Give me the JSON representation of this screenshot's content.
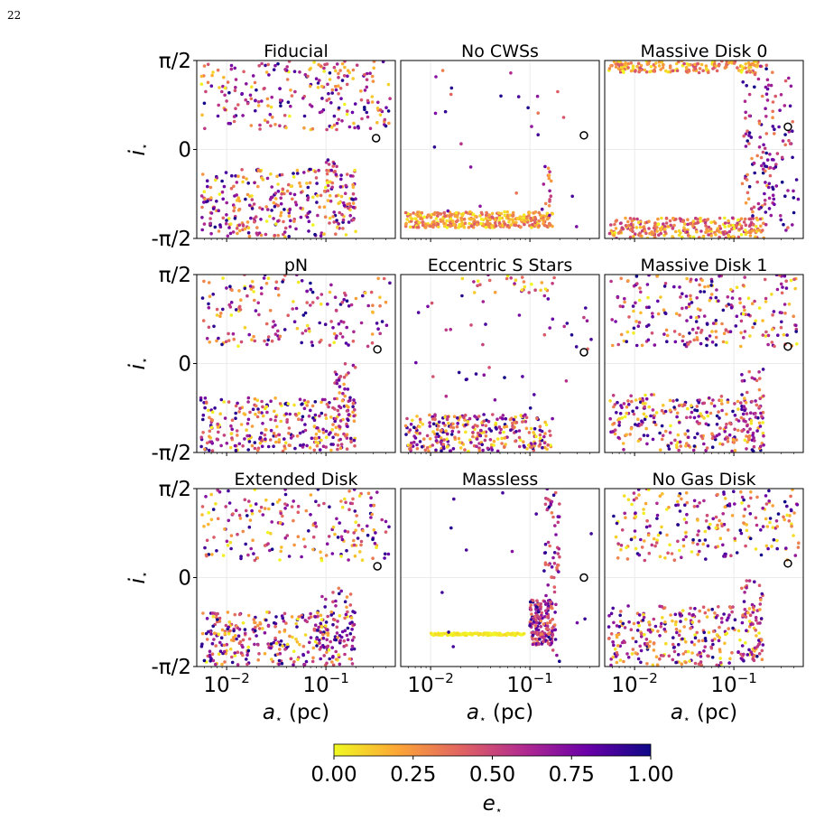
{
  "page_number": "22",
  "chart_data": {
    "type": "scatter",
    "grid": true,
    "legend": "none",
    "x_scale": "log",
    "xlim": [
      0.005,
      0.5
    ],
    "ylim": [
      -1.5708,
      1.5708
    ],
    "x_tick_values": [
      0.01,
      0.1
    ],
    "x_tick_labels": [
      {
        "base": "10",
        "exp": "−2"
      },
      {
        "base": "10",
        "exp": "−1"
      }
    ],
    "y_tick_values": [
      1.5708,
      0,
      -1.5708
    ],
    "y_tick_labels": [
      "π/2",
      "0",
      "-π/2"
    ],
    "xlabel": {
      "main": "a",
      "sub": "⋆",
      "suffix": " (pc)"
    },
    "ylabel": {
      "main": "i",
      "sub": "⋆"
    },
    "colorbar": {
      "label": {
        "main": "e",
        "sub": "⋆"
      },
      "ticks": [
        "0.00",
        "0.25",
        "0.50",
        "0.75",
        "1.00"
      ],
      "tick_values": [
        0,
        0.25,
        0.5,
        0.75,
        1.0
      ],
      "colormap": [
        "#f0f921",
        "#fca636",
        "#e16462",
        "#b12a90",
        "#6a00a8",
        "#0d0887"
      ]
    },
    "panels": [
      {
        "title": "Fiducial",
        "marker": {
          "x": 0.32,
          "y": 0.2
        },
        "clusters": [
          {
            "x": [
              0.0055,
              0.45
            ],
            "y": [
              0.35,
              1.57
            ],
            "n": 240,
            "e": [
              0,
              1
            ]
          },
          {
            "x": [
              0.0055,
              0.2
            ],
            "y": [
              -1.55,
              -0.35
            ],
            "n": 300,
            "e": [
              0,
              1
            ]
          },
          {
            "x": [
              0.1,
              0.2
            ],
            "y": [
              -1.4,
              -0.15
            ],
            "n": 40,
            "e": [
              0.1,
              0.9
            ]
          }
        ]
      },
      {
        "title": "No CWSs",
        "marker": {
          "x": 0.35,
          "y": 0.25
        },
        "clusters": [
          {
            "x": [
              0.0055,
              0.17
            ],
            "y": [
              -1.38,
              -1.1
            ],
            "n": 350,
            "e": [
              0,
              0.45
            ]
          },
          {
            "x": [
              0.13,
              0.17
            ],
            "y": [
              -1.2,
              -0.2
            ],
            "n": 15,
            "e": [
              0.2,
              0.9
            ]
          },
          {
            "x": [
              0.01,
              0.45
            ],
            "y": [
              -1.5,
              1.57
            ],
            "n": 25,
            "e": [
              0.3,
              1
            ]
          }
        ]
      },
      {
        "title": "Massive Disk 0",
        "marker": {
          "x": 0.35,
          "y": 0.4
        },
        "clusters": [
          {
            "x": [
              0.0055,
              0.2
            ],
            "y": [
              1.35,
              1.57
            ],
            "n": 180,
            "e": [
              0,
              0.5
            ]
          },
          {
            "x": [
              0.0055,
              0.2
            ],
            "y": [
              -1.57,
              -1.2
            ],
            "n": 280,
            "e": [
              0,
              0.6
            ]
          },
          {
            "x": [
              0.12,
              0.25
            ],
            "y": [
              -1.4,
              1.5
            ],
            "n": 90,
            "e": [
              0.2,
              1
            ]
          },
          {
            "x": [
              0.2,
              0.45
            ],
            "y": [
              -1.5,
              1.3
            ],
            "n": 60,
            "e": [
              0.3,
              1
            ]
          }
        ]
      },
      {
        "title": "pN",
        "marker": {
          "x": 0.33,
          "y": 0.25
        },
        "clusters": [
          {
            "x": [
              0.0055,
              0.45
            ],
            "y": [
              0.3,
              1.57
            ],
            "n": 180,
            "e": [
              0,
              1
            ]
          },
          {
            "x": [
              0.0055,
              0.2
            ],
            "y": [
              -1.55,
              -0.6
            ],
            "n": 300,
            "e": [
              0,
              1
            ]
          },
          {
            "x": [
              0.12,
              0.2
            ],
            "y": [
              -1.4,
              0
            ],
            "n": 40,
            "e": [
              0.2,
              0.9
            ]
          }
        ]
      },
      {
        "title": "Eccentric S Stars",
        "marker": {
          "x": 0.35,
          "y": 0.2
        },
        "clusters": [
          {
            "x": [
              0.0055,
              0.17
            ],
            "y": [
              -1.55,
              -0.9
            ],
            "n": 300,
            "e": [
              0,
              1
            ]
          },
          {
            "x": [
              0.02,
              0.2
            ],
            "y": [
              1.25,
              1.57
            ],
            "n": 30,
            "e": [
              0,
              0.7
            ]
          },
          {
            "x": [
              0.0055,
              0.45
            ],
            "y": [
              -0.8,
              1.2
            ],
            "n": 40,
            "e": [
              0.4,
              1
            ]
          }
        ]
      },
      {
        "title": "Massive Disk 1",
        "marker": {
          "x": 0.35,
          "y": 0.3
        },
        "clusters": [
          {
            "x": [
              0.0055,
              0.45
            ],
            "y": [
              0.3,
              1.57
            ],
            "n": 240,
            "e": [
              0,
              1
            ]
          },
          {
            "x": [
              0.0055,
              0.2
            ],
            "y": [
              -1.55,
              -0.55
            ],
            "n": 280,
            "e": [
              0,
              1
            ]
          },
          {
            "x": [
              0.12,
              0.2
            ],
            "y": [
              -1.4,
              -0.1
            ],
            "n": 40,
            "e": [
              0.2,
              0.9
            ]
          }
        ]
      },
      {
        "title": "Extended Disk",
        "marker": {
          "x": 0.33,
          "y": 0.2
        },
        "clusters": [
          {
            "x": [
              0.0055,
              0.45
            ],
            "y": [
              0.3,
              1.57
            ],
            "n": 200,
            "e": [
              0,
              1
            ]
          },
          {
            "x": [
              0.0055,
              0.2
            ],
            "y": [
              -1.55,
              -0.6
            ],
            "n": 320,
            "e": [
              0,
              1
            ]
          },
          {
            "x": [
              0.08,
              0.2
            ],
            "y": [
              -1.3,
              -0.15
            ],
            "n": 40,
            "e": [
              0.2,
              1
            ]
          }
        ]
      },
      {
        "title": "Massless",
        "marker": {
          "x": 0.35,
          "y": 0.0
        },
        "clusters": [
          {
            "x": [
              0.01,
              0.09
            ],
            "y": [
              -1.02,
              -0.98
            ],
            "n": 150,
            "e": [
              0,
              0.08
            ]
          },
          {
            "x": [
              0.1,
              0.17
            ],
            "y": [
              -1.2,
              -0.4
            ],
            "n": 160,
            "e": [
              0.3,
              1
            ]
          },
          {
            "x": [
              0.14,
              0.2
            ],
            "y": [
              -1.3,
              1.57
            ],
            "n": 70,
            "e": [
              0.3,
              1
            ]
          },
          {
            "x": [
              0.01,
              0.45
            ],
            "y": [
              -1.5,
              1.57
            ],
            "n": 15,
            "e": [
              0.7,
              1
            ]
          }
        ]
      },
      {
        "title": "No Gas Disk",
        "marker": {
          "x": 0.35,
          "y": 0.25
        },
        "clusters": [
          {
            "x": [
              0.0055,
              0.45
            ],
            "y": [
              0.3,
              1.57
            ],
            "n": 230,
            "e": [
              0,
              1
            ]
          },
          {
            "x": [
              0.0055,
              0.2
            ],
            "y": [
              -1.55,
              -0.5
            ],
            "n": 300,
            "e": [
              0,
              1
            ]
          },
          {
            "x": [
              0.12,
              0.2
            ],
            "y": [
              -1.4,
              0.0
            ],
            "n": 40,
            "e": [
              0.2,
              0.9
            ]
          }
        ]
      }
    ]
  }
}
